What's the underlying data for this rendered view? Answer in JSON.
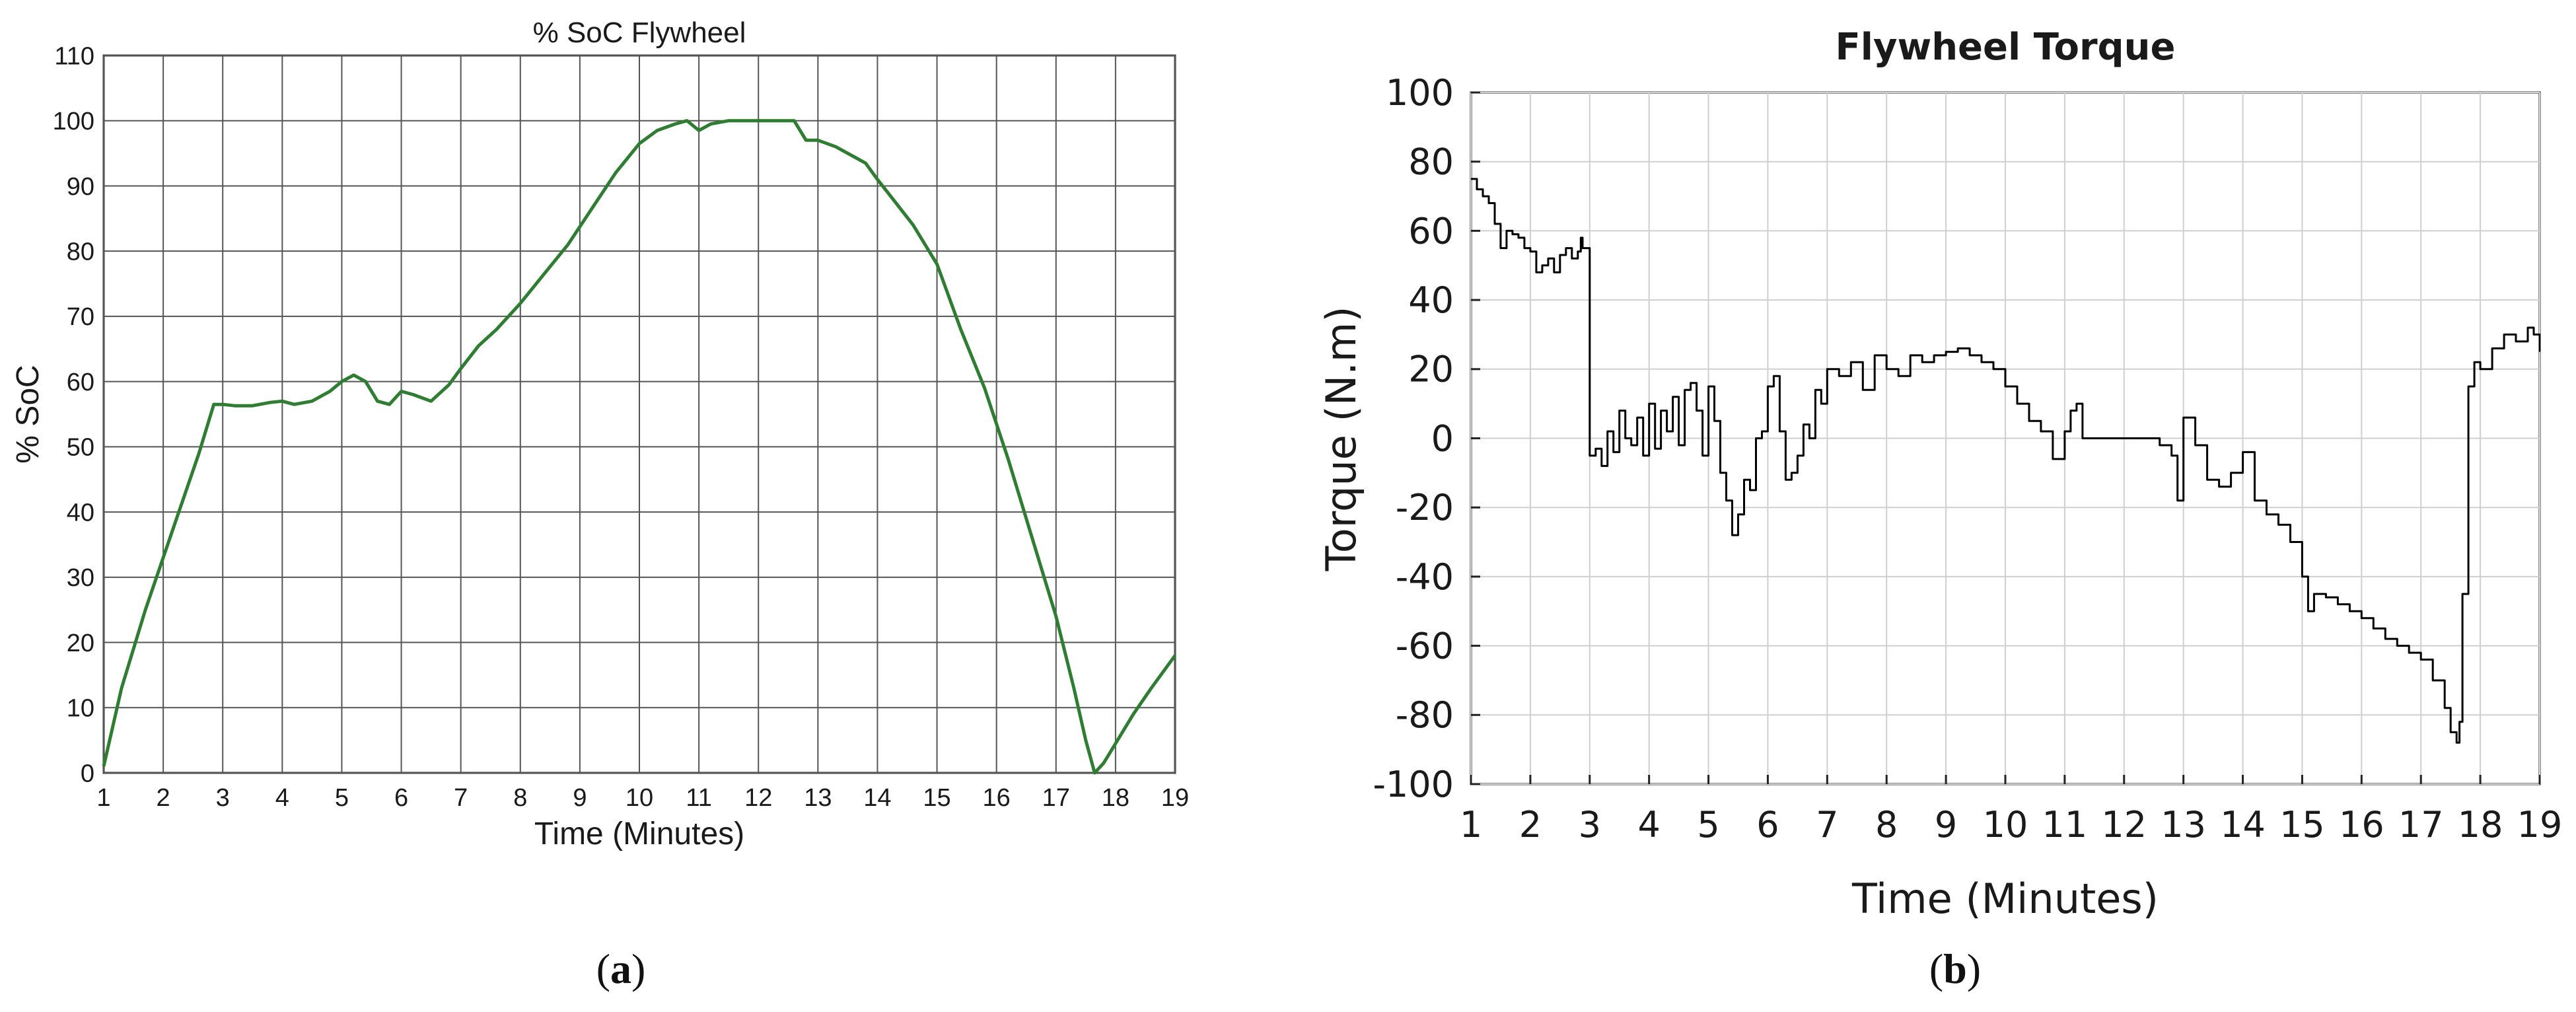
{
  "chart_data": [
    {
      "id": "a",
      "type": "line",
      "title": "% SoC Flywheel",
      "xlabel": "Time (Minutes)",
      "ylabel": "% SoC",
      "xlim": [
        1,
        19
      ],
      "ylim": [
        0,
        110
      ],
      "xticks": [
        1,
        2,
        3,
        4,
        5,
        6,
        7,
        8,
        9,
        10,
        11,
        12,
        13,
        14,
        15,
        16,
        17,
        18,
        19
      ],
      "yticks": [
        0,
        10,
        20,
        30,
        40,
        50,
        60,
        70,
        80,
        90,
        100,
        110
      ],
      "grid": true,
      "color": "#2e7d32",
      "caption_letter": "a",
      "series": [
        {
          "x": [
            1,
            1.3,
            1.7,
            2,
            2.3,
            2.6,
            2.85,
            3.0,
            3.2,
            3.5,
            3.8,
            4.0,
            4.2,
            4.5,
            4.8,
            5.0,
            5.2,
            5.4,
            5.6,
            5.8,
            6.0,
            6.2,
            6.5,
            6.8,
            7.0,
            7.3,
            7.6,
            8.0,
            8.4,
            8.8,
            9.2,
            9.6,
            10.0,
            10.3,
            10.6,
            10.8,
            11.0,
            11.2,
            11.5,
            12.0,
            12.4,
            12.6,
            12.8,
            13.0,
            13.3,
            13.6,
            13.8,
            14.0,
            14.3,
            14.6,
            15.0,
            15.4,
            15.8,
            16.2,
            16.6,
            17.0,
            17.3,
            17.5,
            17.65,
            17.8,
            18.0,
            18.3,
            18.6,
            19.0
          ],
          "y": [
            1,
            13,
            25,
            33,
            41,
            49,
            56.5,
            56.5,
            56.3,
            56.3,
            56.8,
            57,
            56.5,
            57,
            58.5,
            60,
            61,
            60,
            57,
            56.5,
            58.5,
            58,
            57,
            59.5,
            62,
            65.5,
            68,
            72,
            76.5,
            81,
            86.5,
            92,
            96.5,
            98.5,
            99.5,
            100,
            98.5,
            99.5,
            100,
            100,
            100,
            100,
            97,
            97,
            96,
            94.5,
            93.5,
            91,
            87.5,
            84,
            78,
            68,
            59,
            48,
            36,
            24,
            13,
            5,
            0,
            1.5,
            4.5,
            9,
            13,
            18
          ]
        }
      ]
    },
    {
      "id": "b",
      "type": "line",
      "title": "Flywheel Torque",
      "xlabel": "Time (Minutes)",
      "ylabel": "Torque (N.m)",
      "xlim": [
        1,
        19
      ],
      "ylim": [
        -100,
        100
      ],
      "xticks": [
        1,
        2,
        3,
        4,
        5,
        6,
        7,
        8,
        9,
        10,
        11,
        12,
        13,
        14,
        15,
        16,
        17,
        18,
        19
      ],
      "yticks": [
        -100,
        -80,
        -60,
        -40,
        -20,
        0,
        20,
        40,
        60,
        80,
        100
      ],
      "grid": true,
      "color": "#000000",
      "caption_letter": "b",
      "series": [
        {
          "x": [
            1,
            1.1,
            1.2,
            1.3,
            1.4,
            1.5,
            1.6,
            1.7,
            1.8,
            1.9,
            2.0,
            2.1,
            2.2,
            2.3,
            2.4,
            2.5,
            2.6,
            2.7,
            2.8,
            2.85,
            2.88,
            3.0,
            3.1,
            3.2,
            3.3,
            3.4,
            3.5,
            3.6,
            3.7,
            3.8,
            3.9,
            4.0,
            4.1,
            4.2,
            4.3,
            4.4,
            4.5,
            4.6,
            4.7,
            4.8,
            4.9,
            5.0,
            5.1,
            5.2,
            5.3,
            5.4,
            5.5,
            5.6,
            5.7,
            5.8,
            5.9,
            6.0,
            6.1,
            6.2,
            6.3,
            6.4,
            6.5,
            6.6,
            6.7,
            6.8,
            6.9,
            7.0,
            7.2,
            7.4,
            7.6,
            7.8,
            8.0,
            8.2,
            8.4,
            8.6,
            8.8,
            9.0,
            9.2,
            9.4,
            9.6,
            9.8,
            10.0,
            10.2,
            10.4,
            10.6,
            10.8,
            11.0,
            11.1,
            11.2,
            11.3,
            11.4,
            11.6,
            11.8,
            12.0,
            12.2,
            12.4,
            12.5,
            12.6,
            12.8,
            12.9,
            13.0,
            13.2,
            13.4,
            13.6,
            13.8,
            14.0,
            14.2,
            14.4,
            14.6,
            14.8,
            15.0,
            15.1,
            15.2,
            15.4,
            15.6,
            15.8,
            16.0,
            16.2,
            16.4,
            16.6,
            16.8,
            17.0,
            17.2,
            17.4,
            17.5,
            17.6,
            17.65,
            17.7,
            17.8,
            17.9,
            18.0,
            18.2,
            18.4,
            18.6,
            18.8,
            18.9,
            19.0
          ],
          "y": [
            75,
            72,
            70,
            68,
            62,
            55,
            60,
            59,
            58,
            55,
            54,
            48,
            50,
            52,
            48,
            53,
            55,
            52,
            54,
            58,
            55,
            -5,
            -3,
            -8,
            2,
            -4,
            8,
            0,
            -2,
            6,
            -5,
            10,
            -3,
            8,
            2,
            12,
            -2,
            14,
            16,
            8,
            -5,
            15,
            5,
            -10,
            -18,
            -28,
            -22,
            -12,
            -15,
            0,
            2,
            15,
            18,
            2,
            -12,
            -10,
            -5,
            4,
            0,
            14,
            10,
            20,
            18,
            22,
            14,
            24,
            20,
            18,
            24,
            22,
            24,
            25,
            26,
            24,
            22,
            20,
            15,
            10,
            5,
            2,
            -6,
            2,
            8,
            10,
            0,
            0,
            0,
            0,
            0,
            0,
            0,
            0,
            -2,
            -5,
            -18,
            6,
            -2,
            -12,
            -14,
            -10,
            -4,
            -18,
            -22,
            -25,
            -30,
            -40,
            -50,
            -45,
            -46,
            -48,
            -50,
            -52,
            -55,
            -58,
            -60,
            -62,
            -64,
            -70,
            -78,
            -85,
            -88,
            -82,
            -45,
            15,
            22,
            20,
            26,
            30,
            28,
            32,
            30,
            25
          ]
        }
      ]
    }
  ]
}
